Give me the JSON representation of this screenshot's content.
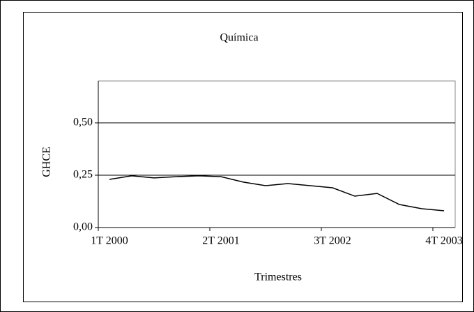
{
  "chart_data": {
    "type": "line",
    "title": "Química",
    "x_label": "Trimestres",
    "y_label": "GHCE",
    "categories": [
      "1T 2000",
      null,
      null,
      null,
      null,
      "2T 2001",
      null,
      null,
      null,
      null,
      "3T 2002",
      null,
      null,
      null,
      null,
      "4T 2003"
    ],
    "series": [
      {
        "name": "Química",
        "color": "#000000",
        "values": [
          0.23,
          0.247,
          0.237,
          0.243,
          0.247,
          0.243,
          0.217,
          0.2,
          0.21,
          0.2,
          0.19,
          0.15,
          0.163,
          0.11,
          0.09,
          0.08
        ]
      }
    ],
    "ylim": [
      0,
      0.7
    ],
    "yticks": [
      {
        "value": 0,
        "label": "0,00"
      },
      {
        "value": 0.25,
        "label": "0,25"
      },
      {
        "value": 0.5,
        "label": "0,50"
      }
    ],
    "grid": true
  }
}
